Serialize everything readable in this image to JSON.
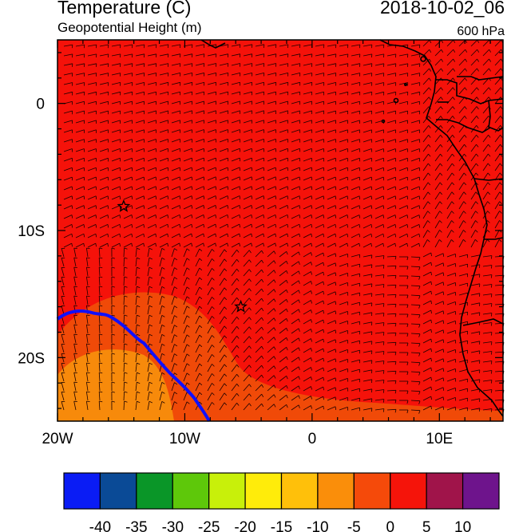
{
  "header": {
    "title": "Temperature (C)",
    "subtitle": "Geopotential Height (m)",
    "datetime": "2018-10-02_06",
    "level": "600 hPa"
  },
  "axes": {
    "x_ticks": [
      {
        "value": -20,
        "label": "20W"
      },
      {
        "value": -10,
        "label": "10W"
      },
      {
        "value": 0,
        "label": "0"
      },
      {
        "value": 10,
        "label": "10E"
      }
    ],
    "y_ticks": [
      {
        "value": 0,
        "label": "0"
      },
      {
        "value": -10,
        "label": "10S"
      },
      {
        "value": -20,
        "label": "20S"
      }
    ],
    "lon_range": [
      -20,
      15
    ],
    "lat_range": [
      -25,
      5
    ]
  },
  "field": {
    "variable": "temperature",
    "units": "C",
    "region_levels": [
      {
        "region": "interior",
        "bin_lower": 0,
        "color": "#f5120a"
      },
      {
        "region": "southwest band",
        "bin_lower": -5,
        "color": "#f04a08"
      },
      {
        "region": "southwest core",
        "bin_lower": -10,
        "color": "#f78a0b"
      }
    ],
    "height_contour_color": "#1010ff",
    "markers": [
      {
        "type": "star-icon",
        "lon": -14.8,
        "lat": -8.1
      },
      {
        "type": "star-icon",
        "lon": -5.6,
        "lat": -16.0
      }
    ]
  },
  "colorbar": {
    "labels": [
      "-40",
      "-35",
      "-30",
      "-25",
      "-20",
      "-15",
      "-10",
      "-5",
      "0",
      "5",
      "10"
    ],
    "colors": [
      "#0a1cf5",
      "#0a4a96",
      "#0a9628",
      "#5ec80a",
      "#c8f00a",
      "#ffec0a",
      "#ffc00a",
      "#fa8e0a",
      "#f54a0a",
      "#f5140a",
      "#a0144a",
      "#6e148c"
    ]
  }
}
